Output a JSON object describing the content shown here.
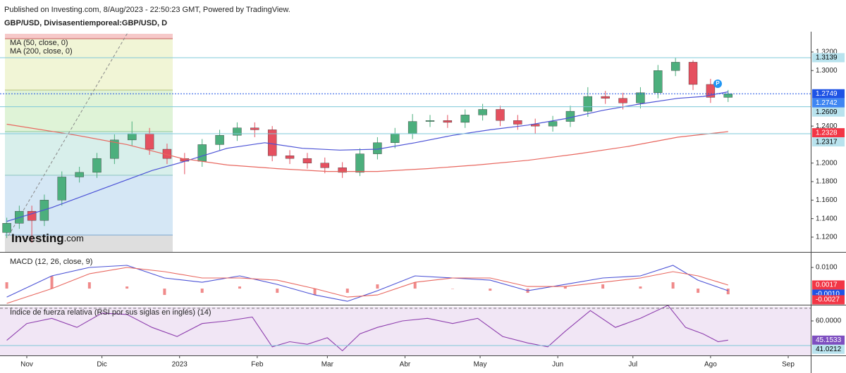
{
  "header": {
    "published": "Published on Investing.com, 8/Aug/2023 - 22:50:23 GMT, Powered by TradingView.",
    "logo_main": "Investing",
    "logo_suffix": ".com",
    "marker": "P"
  },
  "chart_data": [
    {
      "type": "candlestick",
      "title": "GBP/USD, Divisasentiemporeal:GBP/USD, D",
      "up_color": "#4caf7d",
      "down_color": "#e5505f",
      "x": [
        -8,
        -3,
        2,
        7,
        14,
        21,
        28,
        35,
        42,
        49,
        56,
        63,
        70,
        77,
        84,
        91,
        98,
        105,
        112,
        119,
        126,
        133,
        140,
        147,
        154,
        161,
        168,
        175,
        182,
        189,
        196,
        203,
        210,
        217,
        224,
        231,
        238,
        245,
        252,
        259,
        266,
        273,
        280
      ],
      "open": [
        1.125,
        1.135,
        1.148,
        1.138,
        1.16,
        1.185,
        1.19,
        1.205,
        1.225,
        1.232,
        1.215,
        1.205,
        1.202,
        1.22,
        1.23,
        1.238,
        1.236,
        1.208,
        1.205,
        1.2,
        1.195,
        1.19,
        1.21,
        1.222,
        1.232,
        1.245,
        1.246,
        1.244,
        1.252,
        1.258,
        1.246,
        1.242,
        1.24,
        1.245,
        1.256,
        1.272,
        1.27,
        1.265,
        1.276,
        1.3,
        1.309,
        1.285,
        1.271
      ],
      "high": [
        1.141,
        1.154,
        1.154,
        1.166,
        1.191,
        1.196,
        1.211,
        1.231,
        1.245,
        1.238,
        1.221,
        1.211,
        1.226,
        1.236,
        1.244,
        1.244,
        1.24,
        1.214,
        1.211,
        1.206,
        1.201,
        1.216,
        1.228,
        1.238,
        1.253,
        1.252,
        1.252,
        1.258,
        1.264,
        1.262,
        1.252,
        1.248,
        1.251,
        1.262,
        1.282,
        1.278,
        1.276,
        1.282,
        1.306,
        1.314,
        1.311,
        1.291,
        1.279
      ],
      "low": [
        1.119,
        1.129,
        1.114,
        1.132,
        1.154,
        1.179,
        1.184,
        1.199,
        1.219,
        1.209,
        1.199,
        1.188,
        1.196,
        1.214,
        1.224,
        1.228,
        1.202,
        1.199,
        1.194,
        1.189,
        1.184,
        1.186,
        1.204,
        1.216,
        1.226,
        1.239,
        1.238,
        1.238,
        1.246,
        1.24,
        1.236,
        1.232,
        1.234,
        1.239,
        1.25,
        1.264,
        1.258,
        1.259,
        1.27,
        1.294,
        1.279,
        1.265,
        1.266
      ],
      "close": [
        1.135,
        1.148,
        1.138,
        1.16,
        1.185,
        1.19,
        1.205,
        1.225,
        1.232,
        1.215,
        1.205,
        1.202,
        1.22,
        1.23,
        1.238,
        1.236,
        1.208,
        1.205,
        1.2,
        1.195,
        1.19,
        1.21,
        1.222,
        1.232,
        1.245,
        1.246,
        1.244,
        1.252,
        1.258,
        1.246,
        1.242,
        1.24,
        1.245,
        1.256,
        1.272,
        1.27,
        1.265,
        1.276,
        1.3,
        1.309,
        1.285,
        1.271,
        1.2749
      ],
      "series": [
        {
          "name": "MA (50, close, 0)",
          "color": "#4b52d6",
          "x": [
            -8,
            10,
            30,
            50,
            62,
            80,
            95,
            110,
            125,
            140,
            155,
            170,
            185,
            200,
            215,
            230,
            245,
            260,
            270,
            280
          ],
          "values": [
            1.137,
            1.152,
            1.172,
            1.192,
            1.201,
            1.216,
            1.222,
            1.216,
            1.214,
            1.215,
            1.222,
            1.23,
            1.236,
            1.241,
            1.248,
            1.257,
            1.264,
            1.27,
            1.272,
            1.277
          ]
        },
        {
          "name": "MA (200, close, 0)",
          "color": "#e8665e",
          "x": [
            -8,
            20,
            40,
            62,
            80,
            100,
            120,
            140,
            160,
            180,
            200,
            220,
            240,
            260,
            280
          ],
          "values": [
            1.242,
            1.23,
            1.22,
            1.205,
            1.198,
            1.194,
            1.191,
            1.191,
            1.194,
            1.198,
            1.203,
            1.21,
            1.218,
            1.228,
            1.234
          ]
        }
      ],
      "xlim": [
        -10.7,
        313
      ],
      "ylim": [
        1.104,
        1.342
      ],
      "yticks": [
        {
          "value": 1.32,
          "label": "1.3200"
        },
        {
          "value": 1.3,
          "label": "1.3000"
        },
        {
          "value": 1.24,
          "label": "1.2400"
        },
        {
          "value": 1.2,
          "label": "1.2000"
        },
        {
          "value": 1.18,
          "label": "1.1800"
        },
        {
          "value": 1.16,
          "label": "1.1600"
        },
        {
          "value": 1.14,
          "label": "1.1400"
        },
        {
          "value": 1.12,
          "label": "1.1200"
        }
      ],
      "price_labels": [
        {
          "value": 1.3139,
          "label": "1.3139",
          "bg": "#b9e3ee",
          "fg": "#000000",
          "line": "solid"
        },
        {
          "value": 1.2749,
          "label": "1.2749",
          "bg": "#1e53e5",
          "fg": "#ffffff",
          "line": "dotted"
        },
        {
          "value": 1.2742,
          "label": "1.2742",
          "bg": "#3f86f2",
          "fg": "#ffffff"
        },
        {
          "value": 1.2609,
          "label": "1.2609",
          "bg": "#b9e3ee",
          "fg": "#000000",
          "line": "solid"
        },
        {
          "value": 1.2328,
          "label": "1.2328",
          "bg": "#f23645",
          "fg": "#ffffff"
        },
        {
          "value": 1.2317,
          "label": "1.2317",
          "bg": "#b9e3ee",
          "fg": "#000000",
          "line": "solid"
        }
      ]
    },
    {
      "type": "macd",
      "title": "MACD (12, 26, close, 9)",
      "x": [
        -8,
        10,
        25,
        40,
        55,
        70,
        85,
        100,
        115,
        128,
        140,
        155,
        170,
        185,
        200,
        215,
        230,
        245,
        258,
        268,
        280
      ],
      "series": [
        {
          "color": "#4b52d6",
          "values": [
            -0.004,
            0.006,
            0.01,
            0.011,
            0.005,
            0.003,
            0.006,
            0.002,
            -0.003,
            -0.006,
            -0.001,
            0.006,
            0.005,
            0.004,
            -0.001,
            0.002,
            0.005,
            0.006,
            0.011,
            0.004,
            -0.001
          ]
        },
        {
          "color": "#e8665e",
          "values": [
            -0.007,
            0.0,
            0.007,
            0.01,
            0.008,
            0.005,
            0.005,
            0.004,
            0.0,
            -0.004,
            -0.003,
            0.003,
            0.005,
            0.005,
            0.001,
            0.001,
            0.003,
            0.005,
            0.008,
            0.006,
            0.0017
          ]
        }
      ],
      "histogram": {
        "color": "#f08a8a",
        "values": [
          0.003,
          0.006,
          0.003,
          0.001,
          -0.003,
          -0.002,
          0.001,
          -0.002,
          -0.003,
          -0.002,
          0.002,
          0.003,
          0.0,
          -0.001,
          -0.002,
          0.001,
          0.002,
          0.001,
          0.003,
          -0.002,
          -0.0027
        ]
      },
      "xlim": [
        -10.7,
        313
      ],
      "ylim": [
        -0.0073,
        0.016
      ],
      "yticks": [
        {
          "value": 0.01,
          "label": "0.0100"
        }
      ],
      "price_labels": [
        {
          "value": 0.0017,
          "label": "0.0017",
          "bg": "#f23645",
          "fg": "#ffffff"
        },
        {
          "value": -0.001,
          "label": "-0.0010",
          "bg": "#1e53e5",
          "fg": "#ffffff"
        },
        {
          "value": -0.0027,
          "label": "-0.0027",
          "bg": "#f23645",
          "fg": "#ffffff"
        }
      ]
    },
    {
      "type": "line",
      "title": "Índice de fuerza relativa (RSI por sus siglas en inglés) (14)",
      "x": [
        -8,
        0,
        10,
        20,
        30,
        40,
        50,
        60,
        70,
        80,
        90,
        98,
        105,
        112,
        120,
        126,
        133,
        140,
        150,
        160,
        170,
        180,
        190,
        200,
        208,
        215,
        225,
        235,
        245,
        256,
        263,
        270,
        276,
        280
      ],
      "series": [
        {
          "color": "#8e3fae",
          "values": [
            45,
            58,
            62,
            55,
            66,
            65,
            55,
            48,
            58,
            60,
            63,
            40,
            44,
            42,
            47,
            37,
            50,
            55,
            60,
            62,
            58,
            62,
            48,
            43,
            40,
            52,
            68,
            55,
            62,
            72,
            55,
            50,
            44,
            45.1533
          ]
        }
      ],
      "background": "#f1e6f5",
      "xlim": [
        -10.7,
        313
      ],
      "ylim": [
        33.4,
        70.85
      ],
      "yticks": [
        {
          "value": 60,
          "label": "60.0000"
        }
      ],
      "xticks": [
        {
          "value": 0,
          "label": "Nov"
        },
        {
          "value": 30,
          "label": "Dic"
        },
        {
          "value": 61,
          "label": "2023"
        },
        {
          "value": 92,
          "label": "Feb"
        },
        {
          "value": 120,
          "label": "Mar"
        },
        {
          "value": 151,
          "label": "Abr"
        },
        {
          "value": 181,
          "label": "May"
        },
        {
          "value": 212,
          "label": "Jun"
        },
        {
          "value": 242,
          "label": "Jul"
        },
        {
          "value": 273,
          "label": "Ago"
        },
        {
          "value": 304,
          "label": "Sep"
        }
      ],
      "price_labels": [
        {
          "value": 45.1533,
          "label": "45.1533",
          "bg": "#7e4fc0",
          "fg": "#ffffff"
        },
        {
          "value": 41.0212,
          "label": "41.0212",
          "bg": "#b9e3ee",
          "fg": "#000000",
          "line": "solid"
        }
      ]
    }
  ]
}
